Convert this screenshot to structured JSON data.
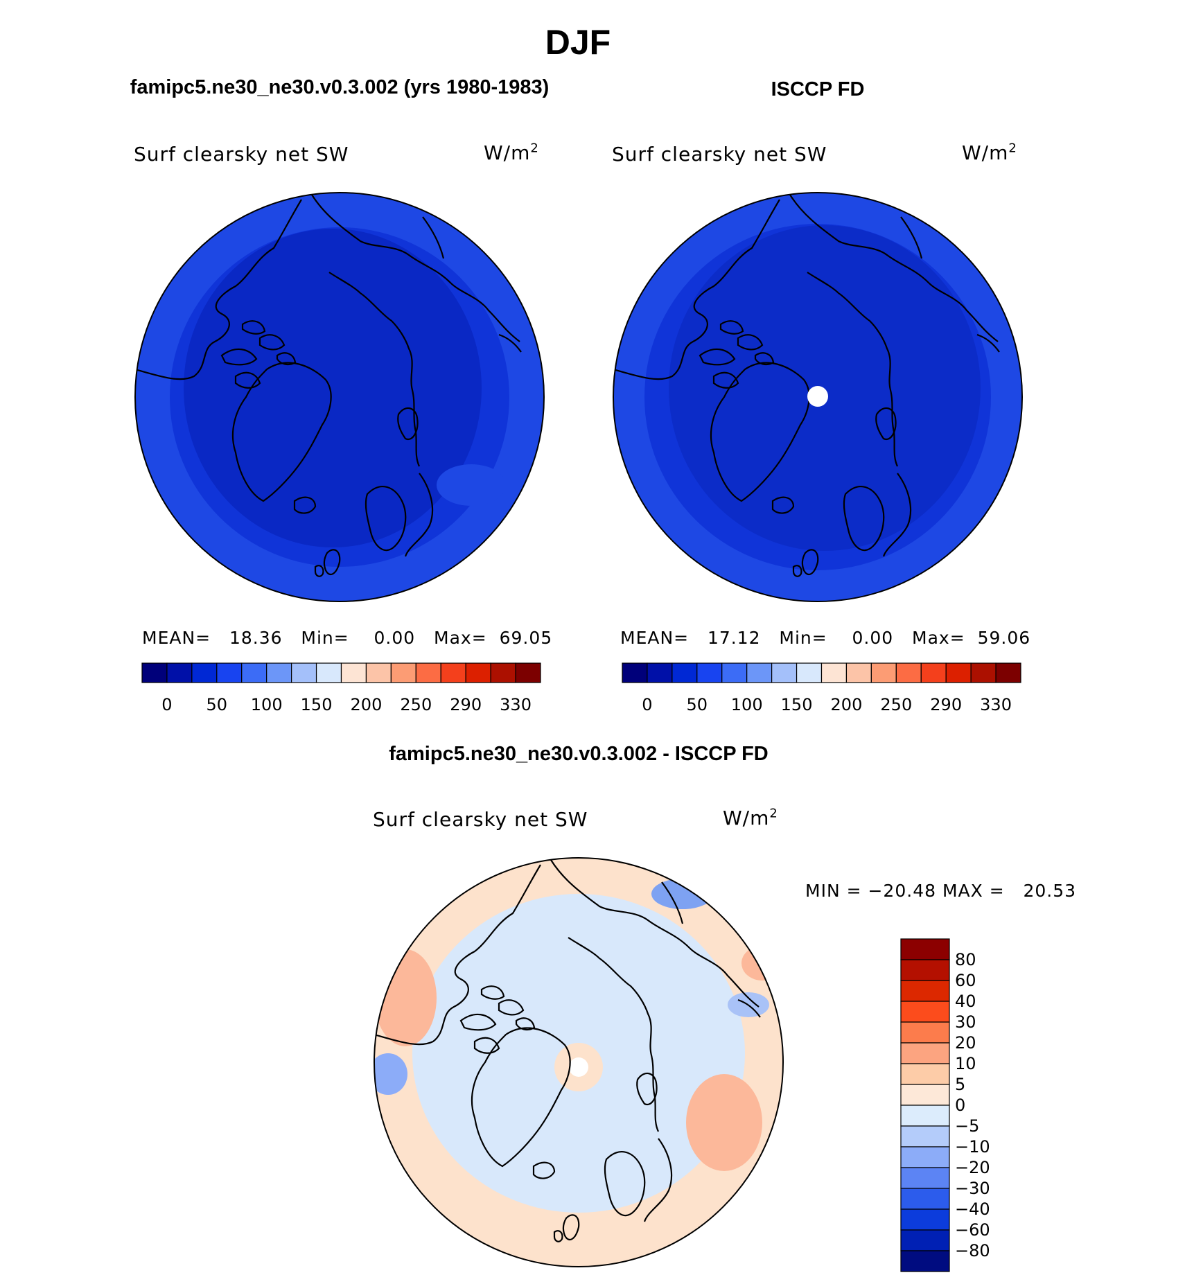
{
  "page_title": "DJF",
  "panels": [
    {
      "id": "model",
      "case_title": "famipc5.ne30_ne30.v0.3.002 (yrs 1980-1983)",
      "variable": "Surf clearsky net SW",
      "units": "W/m2",
      "stats": {
        "mean_label": "MEAN=",
        "mean": "18.36",
        "min_label": "Min=",
        "min": "0.00",
        "max_label": "Max=",
        "max": "69.05"
      }
    },
    {
      "id": "obs",
      "case_title": "ISCCP FD",
      "variable": "Surf clearsky net SW",
      "units": "W/m2",
      "stats": {
        "mean_label": "MEAN=",
        "mean": "17.12",
        "min_label": "Min=",
        "min": "0.00",
        "max_label": "Max=",
        "max": "59.06"
      }
    },
    {
      "id": "diff",
      "case_title": "famipc5.ne30_ne30.v0.3.002 - ISCCP FD",
      "variable": "Surf clearsky net SW",
      "units": "W/m2",
      "stats_text": "MIN = −20.48 MAX =   20.53"
    }
  ],
  "colors": {
    "background": "#ffffff",
    "map_deep": "#0a28c8",
    "map_mid": "#1034d6",
    "map_light": "#1f4ae6",
    "diff_neutral": "#d8e8fb",
    "diff_warm": "#fde2cc"
  },
  "chart_data": [
    {
      "type": "heatmap",
      "projection": "north polar stereographic",
      "title": "famipc5.ne30_ne30.v0.3.002 (yrs 1980-1983)",
      "variable": "Surf clearsky net SW",
      "units": "W/m2",
      "mean": 18.36,
      "min": 0.0,
      "max": 69.05,
      "colorbar": {
        "orientation": "horizontal",
        "tick_labels": [
          "0",
          "50",
          "100",
          "150",
          "200",
          "250",
          "290",
          "330"
        ],
        "colors": [
          "#00007a",
          "#0010a8",
          "#0028d4",
          "#1844f0",
          "#3c6cf6",
          "#6c96f8",
          "#a4c0fa",
          "#d8e8fc",
          "#fde4d4",
          "#fcc4a8",
          "#fc9c74",
          "#fc6c44",
          "#f4401c",
          "#dc2000",
          "#ac1000",
          "#7c0000"
        ]
      }
    },
    {
      "type": "heatmap",
      "projection": "north polar stereographic",
      "title": "ISCCP FD",
      "variable": "Surf clearsky net SW",
      "units": "W/m2",
      "mean": 17.12,
      "min": 0.0,
      "max": 59.06,
      "colorbar": {
        "orientation": "horizontal",
        "tick_labels": [
          "0",
          "50",
          "100",
          "150",
          "200",
          "250",
          "290",
          "330"
        ],
        "colors": [
          "#00007a",
          "#0010a8",
          "#0028d4",
          "#1844f0",
          "#3c6cf6",
          "#6c96f8",
          "#a4c0fa",
          "#d8e8fc",
          "#fde4d4",
          "#fcc4a8",
          "#fc9c74",
          "#fc6c44",
          "#f4401c",
          "#dc2000",
          "#ac1000",
          "#7c0000"
        ]
      }
    },
    {
      "type": "heatmap",
      "projection": "north polar stereographic",
      "title": "famipc5.ne30_ne30.v0.3.002 - ISCCP FD",
      "variable": "Surf clearsky net SW",
      "units": "W/m2",
      "min": -20.48,
      "max": 20.53,
      "colorbar": {
        "orientation": "vertical",
        "tick_labels": [
          "80",
          "60",
          "40",
          "30",
          "20",
          "10",
          "5",
          "0",
          "−5",
          "−10",
          "−20",
          "−30",
          "−40",
          "−60",
          "−80"
        ],
        "colors": [
          "#8c0000",
          "#b41000",
          "#dc2800",
          "#fc4c1c",
          "#fc7c4c",
          "#fca480",
          "#fdcca8",
          "#fde8d8",
          "#dcecfc",
          "#b4ccfa",
          "#8cacf8",
          "#5c84f4",
          "#2c5cec",
          "#0c3cdc",
          "#0020b4",
          "#000c80"
        ]
      }
    }
  ]
}
